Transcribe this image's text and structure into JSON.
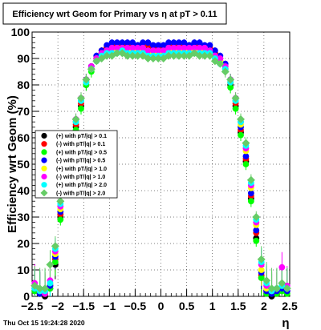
{
  "chart_data": {
    "type": "scatter",
    "title": "Efficiency wrt Geom for Primary vs   η at pT > 0.11",
    "xlabel": "η",
    "ylabel": "Efficiency wrt Geom (%)",
    "xlim": [
      -2.5,
      2.5
    ],
    "ylim": [
      0,
      100
    ],
    "x_ticks": [
      -2.5,
      -2,
      -1.5,
      -1,
      -0.5,
      0,
      0.5,
      1,
      1.5,
      2,
      2.5
    ],
    "x_tick_labels": [
      "−2.5",
      "−2",
      "−1.5",
      "−1",
      "−0.5",
      "0",
      "0.5",
      "1",
      "1.5",
      "2",
      "2.5"
    ],
    "y_ticks": [
      0,
      10,
      20,
      30,
      40,
      50,
      60,
      70,
      80,
      90,
      100
    ],
    "y_tick_labels": [
      "0",
      "10",
      "20",
      "30",
      "40",
      "50",
      "60",
      "70",
      "80",
      "90",
      "100"
    ],
    "grid": true,
    "legend_position": "left",
    "x": [
      -2.45,
      -2.35,
      -2.25,
      -2.15,
      -2.05,
      -1.95,
      -1.85,
      -1.75,
      -1.65,
      -1.55,
      -1.45,
      -1.35,
      -1.25,
      -1.15,
      -1.05,
      -0.95,
      -0.85,
      -0.75,
      -0.65,
      -0.55,
      -0.45,
      -0.35,
      -0.25,
      -0.15,
      -0.05,
      0.05,
      0.15,
      0.25,
      0.35,
      0.45,
      0.55,
      0.65,
      0.75,
      0.85,
      0.95,
      1.05,
      1.15,
      1.25,
      1.35,
      1.45,
      1.55,
      1.65,
      1.75,
      1.85,
      1.95,
      2.05,
      2.15,
      2.25,
      2.35,
      2.45
    ],
    "series": [
      {
        "name": "(+) with pT/|q| > 0.1",
        "color": "#000000",
        "marker": "circle",
        "values": [
          2,
          1,
          0,
          3,
          12,
          30,
          44,
          55,
          64,
          72,
          80,
          86,
          90,
          92,
          94,
          95,
          94,
          95,
          95,
          94,
          95,
          95,
          94,
          94,
          93,
          94,
          95,
          95,
          94,
          95,
          95,
          94,
          95,
          94,
          93,
          92,
          90,
          87,
          80,
          72,
          62,
          51,
          37,
          22,
          7,
          1,
          0,
          1,
          2,
          2
        ]
      },
      {
        "name": "(-) with pT/|q| > 0.1",
        "color": "#ff0000",
        "marker": "circle",
        "values": [
          3,
          1,
          1,
          4,
          14,
          31,
          45,
          56,
          65,
          73,
          81,
          87,
          90,
          93,
          94,
          95,
          95,
          95,
          95,
          95,
          94,
          95,
          95,
          94,
          94,
          94,
          95,
          95,
          95,
          95,
          94,
          95,
          95,
          94,
          94,
          92,
          90,
          86,
          81,
          73,
          63,
          52,
          38,
          24,
          8,
          2,
          1,
          1,
          3,
          2
        ]
      },
      {
        "name": "(+) with pT/|q| > 0.5",
        "color": "#00ff00",
        "marker": "circle",
        "values": [
          2,
          1,
          1,
          3,
          13,
          29,
          43,
          54,
          63,
          71,
          80,
          85,
          89,
          92,
          93,
          94,
          94,
          94,
          94,
          94,
          94,
          94,
          93,
          93,
          93,
          93,
          94,
          94,
          94,
          94,
          94,
          94,
          94,
          94,
          93,
          91,
          89,
          86,
          79,
          71,
          61,
          50,
          36,
          21,
          7,
          1,
          1,
          1,
          2,
          1
        ]
      },
      {
        "name": "(-) with pT/|q| > 0.5",
        "color": "#0000ff",
        "marker": "circle",
        "values": [
          3,
          1,
          1,
          4,
          15,
          32,
          46,
          57,
          66,
          74,
          82,
          87,
          91,
          93,
          95,
          96,
          96,
          96,
          96,
          96,
          95,
          96,
          96,
          95,
          95,
          95,
          96,
          96,
          96,
          96,
          95,
          96,
          96,
          95,
          95,
          93,
          91,
          88,
          82,
          74,
          64,
          53,
          39,
          25,
          9,
          2,
          1,
          2,
          3,
          2
        ]
      },
      {
        "name": "(+) with pT/|q| > 1.0",
        "color": "#ffff00",
        "marker": "circle",
        "values": [
          4,
          2,
          1,
          5,
          16,
          33,
          47,
          57,
          66,
          74,
          81,
          86,
          90,
          92,
          93,
          93,
          93,
          93,
          93,
          93,
          93,
          93,
          92,
          92,
          92,
          92,
          93,
          93,
          93,
          93,
          93,
          93,
          93,
          93,
          92,
          91,
          89,
          86,
          81,
          74,
          65,
          55,
          41,
          27,
          10,
          3,
          2,
          3,
          4,
          3
        ]
      },
      {
        "name": "(-) with pT/|q| > 1.0",
        "color": "#ff00ff",
        "marker": "circle",
        "values": [
          5,
          2,
          1,
          6,
          17,
          34,
          48,
          58,
          67,
          75,
          82,
          87,
          90,
          92,
          93,
          94,
          94,
          94,
          94,
          94,
          94,
          94,
          93,
          93,
          93,
          93,
          94,
          94,
          94,
          94,
          94,
          94,
          94,
          94,
          93,
          91,
          90,
          87,
          82,
          75,
          66,
          56,
          42,
          28,
          12,
          4,
          2,
          3,
          11,
          4
        ]
      },
      {
        "name": "(+) with pT/|q| > 2.0",
        "color": "#00ffff",
        "marker": "circle",
        "values": [
          3,
          2,
          2,
          5,
          18,
          35,
          49,
          58,
          66,
          74,
          81,
          86,
          89,
          91,
          92,
          92,
          92,
          93,
          92,
          92,
          92,
          92,
          91,
          91,
          91,
          91,
          92,
          92,
          92,
          92,
          92,
          92,
          92,
          92,
          92,
          90,
          88,
          86,
          81,
          74,
          66,
          57,
          43,
          29,
          13,
          5,
          2,
          3,
          4,
          3
        ]
      },
      {
        "name": "(-) with pT/|q| > 2.0",
        "color": "#66cc66",
        "marker": "diamond",
        "values": [
          4,
          3,
          3,
          12,
          19,
          36,
          50,
          59,
          67,
          75,
          82,
          86,
          89,
          90,
          91,
          91,
          92,
          92,
          91,
          91,
          91,
          91,
          90,
          90,
          90,
          90,
          91,
          91,
          91,
          91,
          91,
          92,
          91,
          91,
          91,
          89,
          88,
          85,
          82,
          75,
          67,
          58,
          44,
          30,
          14,
          6,
          3,
          3,
          5,
          3
        ]
      }
    ]
  },
  "footer": {
    "date": "Thu Oct 15 19:24:28 2020"
  }
}
